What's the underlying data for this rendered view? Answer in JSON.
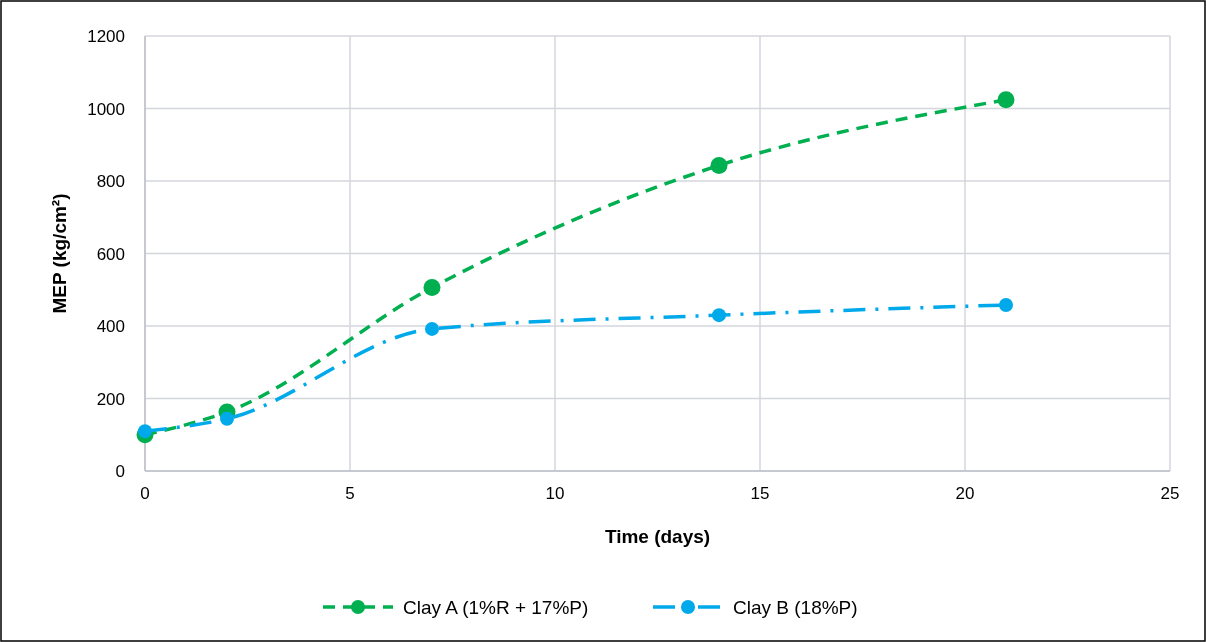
{
  "chart_data": {
    "type": "line",
    "xlabel": "Time (days)",
    "ylabel": "MEP (kg/cm²)",
    "x": [
      0,
      2,
      7,
      14,
      21
    ],
    "series": [
      {
        "name": "Clay A (1%R + 17%P)",
        "color": "#00b050",
        "values": [
          100,
          163,
          506,
          843,
          1024
        ],
        "line_style": "dashed"
      },
      {
        "name": "Clay B (18%P)",
        "color": "#00a9ea",
        "values": [
          110,
          144,
          392,
          430,
          458
        ],
        "line_style": "dashdot"
      }
    ],
    "xlim": [
      0,
      25
    ],
    "xticks": [
      0,
      5,
      10,
      15,
      20,
      25
    ],
    "ylim": [
      0,
      1200
    ],
    "yticks": [
      0,
      200,
      400,
      600,
      800,
      1000,
      1200
    ],
    "grid": true,
    "legend": "bottom",
    "marker": "circle"
  }
}
